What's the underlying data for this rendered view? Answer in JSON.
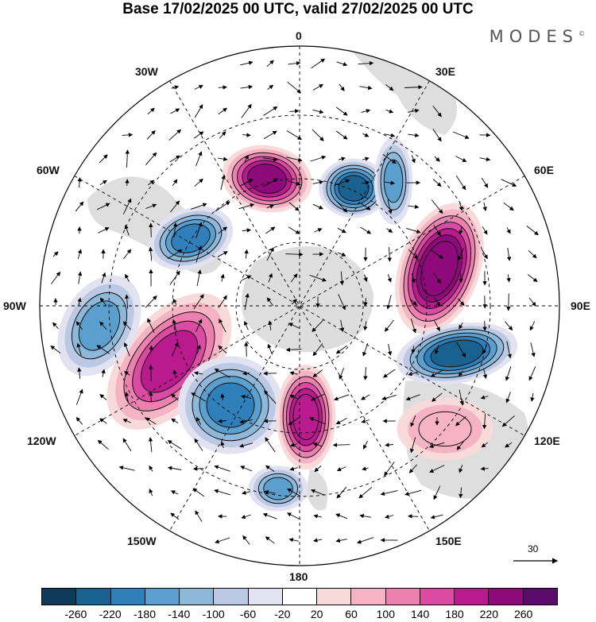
{
  "title": "Base 17/02/2025 00 UTC, valid 27/02/2025 00 UTC",
  "logo": "MODES",
  "logo_mark": "©",
  "longitude_labels": {
    "lon_0": "0",
    "lon_30e": "30E",
    "lon_60e": "60E",
    "lon_90e": "90E",
    "lon_120e": "120E",
    "lon_150e": "150E",
    "lon_180": "180",
    "lon_150w": "150W",
    "lon_120w": "120W",
    "lon_90w": "90W",
    "lon_60w": "60W",
    "lon_30w": "30W"
  },
  "reference_vector": {
    "value": "30"
  },
  "colorbar": {
    "colors": [
      "#0e3a5a",
      "#19628f",
      "#2f7fba",
      "#5a9fcd",
      "#8eb8da",
      "#bcc9e4",
      "#e2e2f1",
      "#ffffff",
      "#f9dada",
      "#f6b3c3",
      "#ec80ae",
      "#db4aa3",
      "#b91b8e",
      "#8e0a7b",
      "#5a0a6a"
    ],
    "ticks": [
      "-260",
      "-220",
      "-180",
      "-140",
      "-100",
      "-60",
      "-20",
      "20",
      "60",
      "100",
      "140",
      "180",
      "220",
      "260"
    ]
  },
  "anomaly_centers": [
    {
      "id": "c1",
      "value": -200
    },
    {
      "id": "c2",
      "value": 240
    },
    {
      "id": "c3",
      "value": -220
    },
    {
      "id": "c4",
      "value": 260
    },
    {
      "id": "c5",
      "value": -220
    },
    {
      "id": "c6",
      "value": 200
    },
    {
      "id": "c7",
      "value": -160
    },
    {
      "id": "c8",
      "value": -180
    },
    {
      "id": "c9",
      "value": 220
    },
    {
      "id": "c10",
      "value": -140
    },
    {
      "id": "c11",
      "value": -140
    },
    {
      "id": "c12",
      "value": 100
    }
  ]
}
